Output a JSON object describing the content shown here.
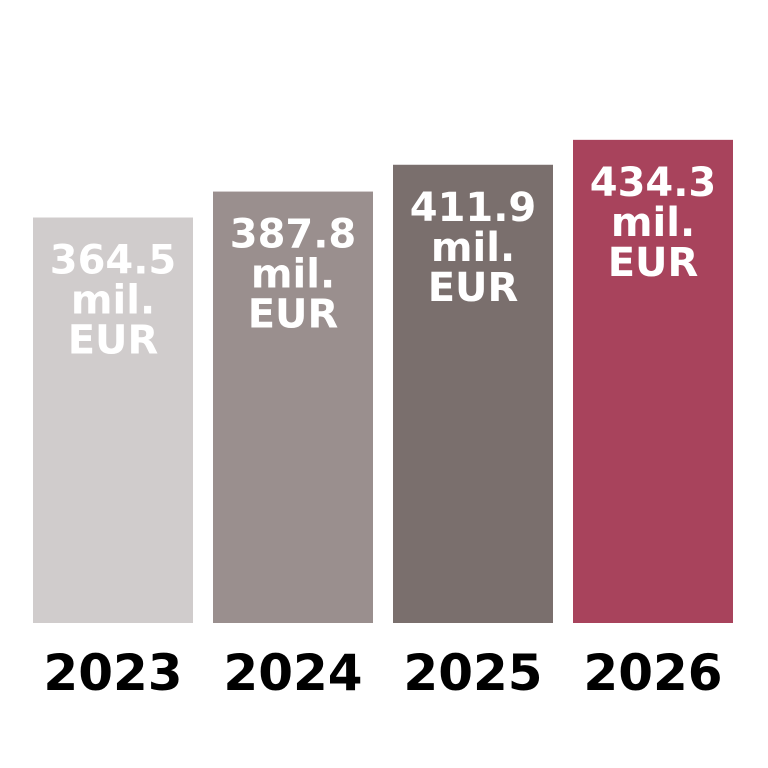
{
  "chart_data": {
    "type": "bar",
    "categories": [
      "2023",
      "2024",
      "2025",
      "2026"
    ],
    "values": [
      364.5,
      387.8,
      411.9,
      434.3
    ],
    "value_labels": [
      "364.5 mil. EUR",
      "387.8 mil. EUR",
      "411.9 mil. EUR",
      "434.3 mil. EUR"
    ],
    "colors": [
      "#d0cccc",
      "#9a8f8e",
      "#7a6f6d",
      "#a8435c"
    ],
    "label_color": "#ffffff",
    "ylim": [
      0,
      560
    ]
  }
}
